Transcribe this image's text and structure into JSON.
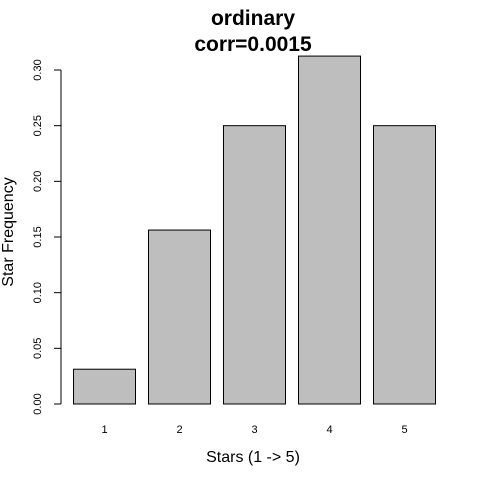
{
  "chart_data": {
    "type": "bar",
    "title_line1": "ordinary",
    "title_line2": "corr=0.0015",
    "xlabel": "Stars (1 -> 5)",
    "ylabel": "Star Frequency",
    "categories": [
      "1",
      "2",
      "3",
      "4",
      "5"
    ],
    "values": [
      0.03125,
      0.15625,
      0.25,
      0.3125,
      0.25
    ],
    "ylim": [
      0,
      0.3
    ],
    "yticks": [
      "0.00",
      "0.05",
      "0.10",
      "0.15",
      "0.20",
      "0.25",
      "0.30"
    ],
    "bar_color": "#bebebe",
    "bar_border": "#000000",
    "grid": false,
    "legend": "none"
  }
}
